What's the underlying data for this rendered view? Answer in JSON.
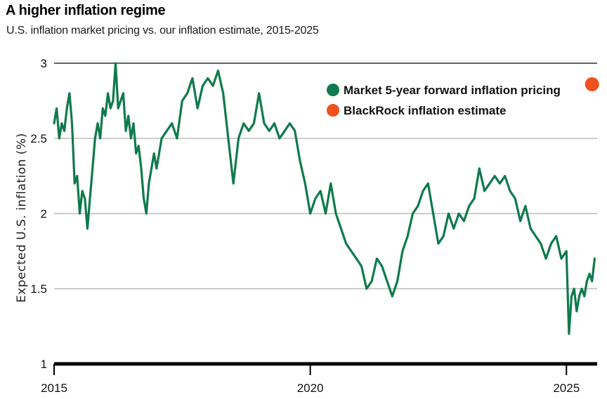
{
  "chart_data": {
    "type": "line",
    "title": "A higher inflation regime",
    "subtitle": "U.S. inflation market pricing vs. our inflation estimate, 2015-2025",
    "ylabel": "Expected U.S. inflation (%)",
    "xlabel": "",
    "ylim": [
      1,
      3
    ],
    "xlim": [
      2015.0,
      2025.6
    ],
    "y_ticks": [
      {
        "value": 1,
        "label": "1"
      },
      {
        "value": 1.5,
        "label": "1.5"
      },
      {
        "value": 2,
        "label": "2"
      },
      {
        "value": 2.5,
        "label": "2.5"
      },
      {
        "value": 3,
        "label": "3"
      }
    ],
    "x_ticks": [
      {
        "value": 2015,
        "label": "2015"
      },
      {
        "value": 2020,
        "label": "2020"
      },
      {
        "value": 2025,
        "label": "2025"
      }
    ],
    "grid": "horizontal",
    "legend_position": "top-right",
    "series": [
      {
        "name": "Market 5-year forward inflation pricing",
        "color": "#0f7a4d",
        "kind": "line",
        "x": [
          2015.0,
          2015.05,
          2015.1,
          2015.15,
          2015.2,
          2015.25,
          2015.3,
          2015.35,
          2015.4,
          2015.45,
          2015.5,
          2015.55,
          2015.6,
          2015.65,
          2015.7,
          2015.75,
          2015.8,
          2015.85,
          2015.9,
          2015.95,
          2016.0,
          2016.05,
          2016.1,
          2016.15,
          2016.2,
          2016.25,
          2016.3,
          2016.35,
          2016.4,
          2016.45,
          2016.5,
          2016.55,
          2016.6,
          2016.65,
          2016.7,
          2016.75,
          2016.8,
          2016.85,
          2016.9,
          2016.95,
          2017.0,
          2017.1,
          2017.2,
          2017.3,
          2017.4,
          2017.5,
          2017.6,
          2017.7,
          2017.8,
          2017.9,
          2018.0,
          2018.1,
          2018.2,
          2018.3,
          2018.4,
          2018.5,
          2018.6,
          2018.7,
          2018.8,
          2018.9,
          2019.0,
          2019.1,
          2019.2,
          2019.3,
          2019.4,
          2019.5,
          2019.6,
          2019.7,
          2019.8,
          2019.9,
          2020.0,
          2020.1,
          2020.2,
          2020.3,
          2020.4,
          2020.5,
          2020.6,
          2020.7,
          2020.8,
          2020.9,
          2021.0,
          2021.1,
          2021.2,
          2021.3,
          2021.4,
          2021.5,
          2021.6,
          2021.7,
          2021.8,
          2021.9,
          2022.0,
          2022.1,
          2022.2,
          2022.3,
          2022.4,
          2022.5,
          2022.6,
          2022.7,
          2022.8,
          2022.9,
          2023.0,
          2023.1,
          2023.2,
          2023.3,
          2023.4,
          2023.5,
          2023.6,
          2023.7,
          2023.8,
          2023.9,
          2024.0,
          2024.1,
          2024.2,
          2024.3,
          2024.4,
          2024.5,
          2024.6,
          2024.7,
          2024.8,
          2024.9,
          2025.0,
          2025.05,
          2025.1,
          2025.15,
          2025.2,
          2025.25,
          2025.3,
          2025.35,
          2025.4,
          2025.45,
          2025.5,
          2025.55
        ],
        "y": [
          2.6,
          2.7,
          2.5,
          2.6,
          2.55,
          2.7,
          2.8,
          2.6,
          2.2,
          2.25,
          2.0,
          2.15,
          2.1,
          1.9,
          2.1,
          2.3,
          2.5,
          2.6,
          2.5,
          2.7,
          2.65,
          2.8,
          2.7,
          2.75,
          3.0,
          2.7,
          2.75,
          2.8,
          2.55,
          2.65,
          2.5,
          2.6,
          2.4,
          2.45,
          2.3,
          2.1,
          2.0,
          2.2,
          2.3,
          2.4,
          2.3,
          2.5,
          2.55,
          2.6,
          2.5,
          2.75,
          2.8,
          2.9,
          2.7,
          2.85,
          2.9,
          2.85,
          2.95,
          2.8,
          2.5,
          2.2,
          2.5,
          2.6,
          2.55,
          2.6,
          2.8,
          2.6,
          2.55,
          2.6,
          2.5,
          2.55,
          2.6,
          2.55,
          2.35,
          2.2,
          2.0,
          2.1,
          2.15,
          2.0,
          2.2,
          2.0,
          1.9,
          1.8,
          1.75,
          1.7,
          1.65,
          1.5,
          1.55,
          1.7,
          1.65,
          1.55,
          1.45,
          1.55,
          1.75,
          1.85,
          2.0,
          2.05,
          2.15,
          2.2,
          2.0,
          1.8,
          1.85,
          2.0,
          1.9,
          2.0,
          1.95,
          2.05,
          2.1,
          2.3,
          2.15,
          2.2,
          2.25,
          2.2,
          2.25,
          2.15,
          2.1,
          1.95,
          2.05,
          1.9,
          1.85,
          1.8,
          1.7,
          1.8,
          1.85,
          1.7,
          1.75,
          1.2,
          1.45,
          1.5,
          1.35,
          1.45,
          1.5,
          1.45,
          1.55,
          1.6,
          1.55,
          1.7
        ]
      },
      {
        "name": "BlackRock inflation estimate",
        "color": "#f0501e",
        "kind": "point",
        "x": [
          2025.5
        ],
        "y": [
          2.86
        ]
      }
    ]
  }
}
